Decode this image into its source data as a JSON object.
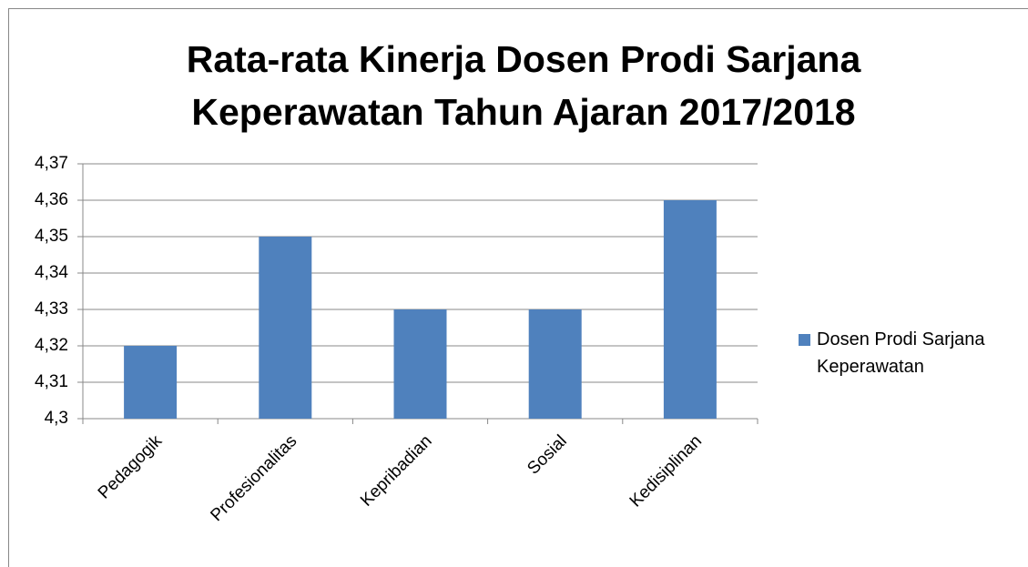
{
  "chart_data": {
    "type": "bar",
    "title": "Rata-rata Kinerja Dosen Prodi Sarjana Keperawatan Tahun Ajaran 2017/2018",
    "categories": [
      "Pedagogik",
      "Profesionalitas",
      "Kepribadian",
      "Sosial",
      "Kedisiplinan"
    ],
    "series": [
      {
        "name": "Dosen Prodi Sarjana Keperawatan",
        "color": "#4f81bd",
        "values": [
          4.32,
          4.35,
          4.33,
          4.33,
          4.36
        ]
      }
    ],
    "ylim": [
      4.3,
      4.37
    ],
    "yticks": [
      {
        "value": 4.3,
        "label": "4,3"
      },
      {
        "value": 4.31,
        "label": "4,31"
      },
      {
        "value": 4.32,
        "label": "4,32"
      },
      {
        "value": 4.33,
        "label": "4,33"
      },
      {
        "value": 4.34,
        "label": "4,34"
      },
      {
        "value": 4.35,
        "label": "4,35"
      },
      {
        "value": 4.36,
        "label": "4,36"
      },
      {
        "value": 4.37,
        "label": "4,37"
      }
    ],
    "grid": true,
    "legend": "right"
  }
}
